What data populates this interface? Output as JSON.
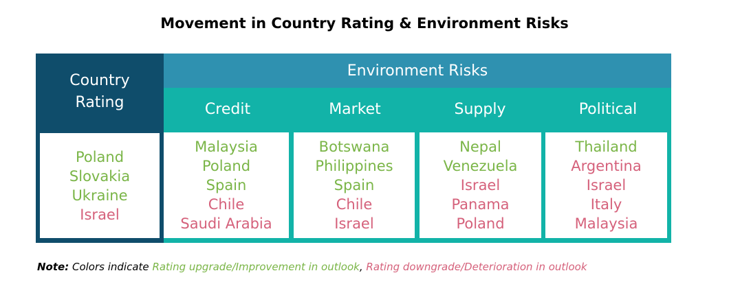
{
  "title": "Movement in Country Rating & Environment Risks",
  "colors": {
    "upgrade": "#7ab547",
    "downgrade": "#d5617b",
    "rating_header_bg": "#0f4d6b",
    "env_header_bg": "#2f91b0",
    "category_bg": "#12b3a8"
  },
  "country_rating": {
    "header_line1": "Country",
    "header_line2": "Rating",
    "items": [
      {
        "name": "Poland",
        "status": "upgrade"
      },
      {
        "name": "Slovakia",
        "status": "upgrade"
      },
      {
        "name": "Ukraine",
        "status": "upgrade"
      },
      {
        "name": "Israel",
        "status": "downgrade"
      }
    ]
  },
  "environment_risks": {
    "header": "Environment Risks",
    "categories": [
      {
        "label": "Credit",
        "items": [
          {
            "name": "Malaysia",
            "status": "upgrade"
          },
          {
            "name": "Poland",
            "status": "upgrade"
          },
          {
            "name": "Spain",
            "status": "upgrade"
          },
          {
            "name": "Chile",
            "status": "downgrade"
          },
          {
            "name": "Saudi Arabia",
            "status": "downgrade"
          }
        ]
      },
      {
        "label": "Market",
        "items": [
          {
            "name": "Botswana",
            "status": "upgrade"
          },
          {
            "name": "Philippines",
            "status": "upgrade"
          },
          {
            "name": "Spain",
            "status": "upgrade"
          },
          {
            "name": "Chile",
            "status": "downgrade"
          },
          {
            "name": "Israel",
            "status": "downgrade"
          }
        ]
      },
      {
        "label": "Supply",
        "items": [
          {
            "name": "Nepal",
            "status": "upgrade"
          },
          {
            "name": "Venezuela",
            "status": "upgrade"
          },
          {
            "name": "Israel",
            "status": "downgrade"
          },
          {
            "name": "Panama",
            "status": "downgrade"
          },
          {
            "name": "Poland",
            "status": "downgrade"
          }
        ]
      },
      {
        "label": "Political",
        "items": [
          {
            "name": "Thailand",
            "status": "upgrade"
          },
          {
            "name": "Argentina",
            "status": "downgrade"
          },
          {
            "name": "Israel",
            "status": "downgrade"
          },
          {
            "name": "Italy",
            "status": "downgrade"
          },
          {
            "name": "Malaysia",
            "status": "downgrade"
          }
        ]
      }
    ]
  },
  "note": {
    "label": "Note:",
    "text": "Colors indicate",
    "upgrade_text": "Rating upgrade/Improvement in outlook",
    "separator": ",",
    "downgrade_text": "Rating downgrade/Deterioration in outlook"
  }
}
